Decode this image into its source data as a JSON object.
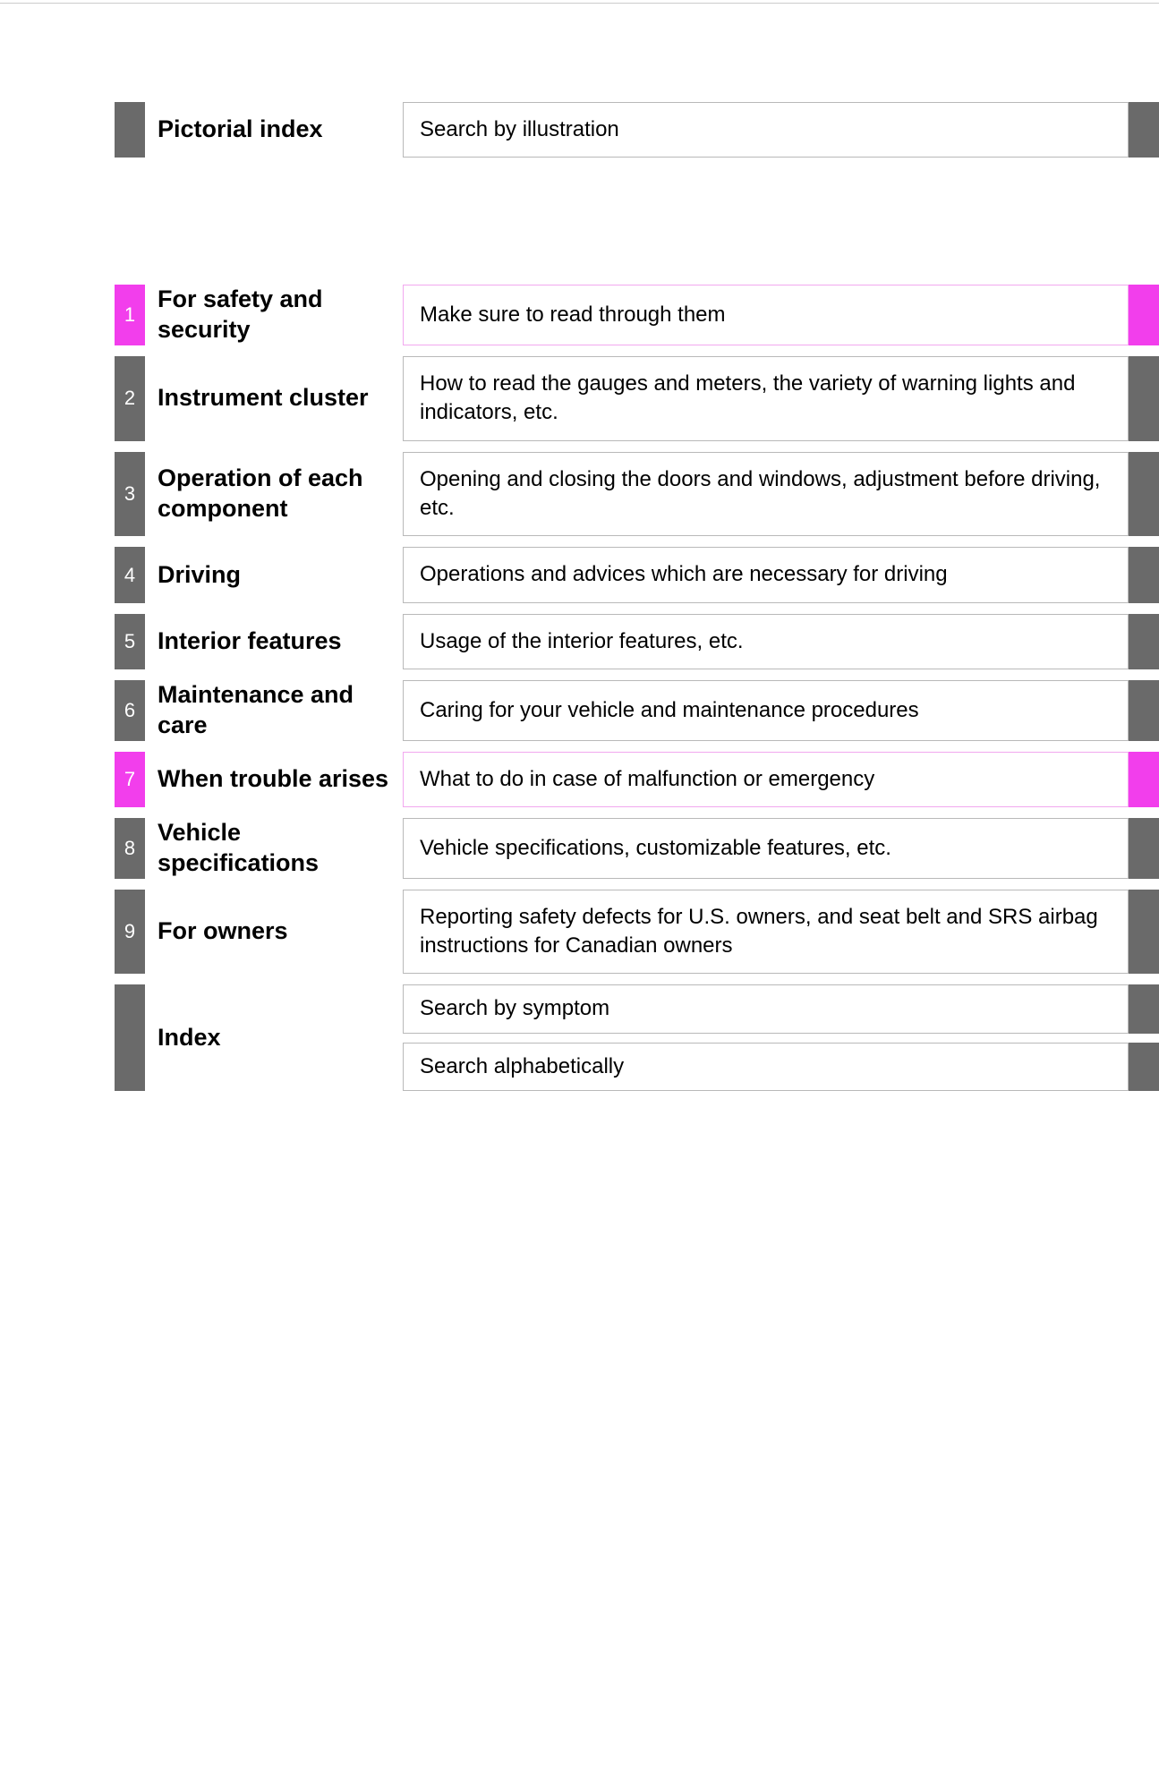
{
  "colors": {
    "gray": "#6a6a6a",
    "magenta": "#f23eec",
    "border_gray": "#b9b9b9",
    "border_magenta": "#f2a8ef"
  },
  "pictorial": {
    "title": "Pictorial index",
    "desc": "Search by illustration"
  },
  "chapters": [
    {
      "num": "1",
      "title": "For safety and security",
      "desc": "Make sure to read through them",
      "highlight": true
    },
    {
      "num": "2",
      "title": "Instrument cluster",
      "desc": "How to read the gauges and meters, the variety of warning lights and indicators, etc.",
      "highlight": false
    },
    {
      "num": "3",
      "title": "Operation of each component",
      "desc": "Opening and closing the doors and windows, adjustment before driving, etc.",
      "highlight": false
    },
    {
      "num": "4",
      "title": "Driving",
      "desc": "Operations and advices which are necessary for driving",
      "highlight": false
    },
    {
      "num": "5",
      "title": "Interior features",
      "desc": "Usage of the interior features, etc.",
      "highlight": false
    },
    {
      "num": "6",
      "title": "Maintenance and care",
      "desc": "Caring for your vehicle and maintenance procedures",
      "highlight": false
    },
    {
      "num": "7",
      "title": "When trouble arises",
      "desc": "What to do in case of malfunction or emergency",
      "highlight": true
    },
    {
      "num": "8",
      "title": "Vehicle specifications",
      "desc": "Vehicle specifications, customizable features, etc.",
      "highlight": false
    },
    {
      "num": "9",
      "title": "For owners",
      "desc": "Reporting safety defects for U.S. owners, and seat belt and SRS airbag instructions for Canadian owners",
      "highlight": false
    }
  ],
  "index_section": {
    "title": "Index",
    "items": [
      "Search by symptom",
      "Search alphabetically"
    ]
  }
}
